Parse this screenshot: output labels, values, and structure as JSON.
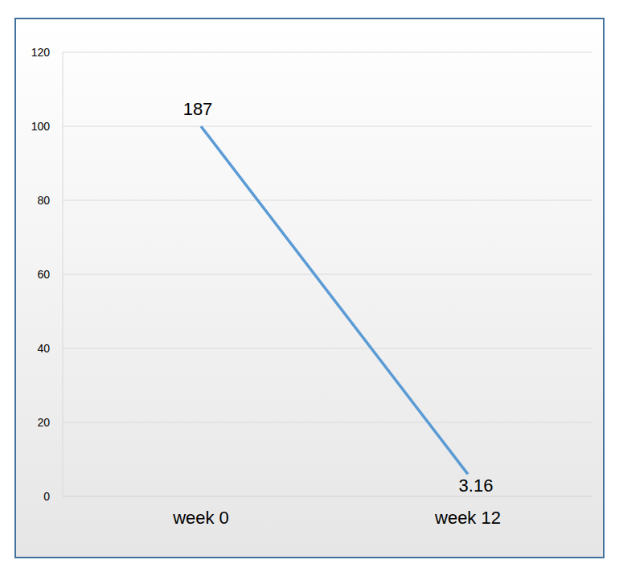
{
  "chart_data": {
    "type": "line",
    "categories": [
      "week 0",
      "week 12"
    ],
    "values": [
      100,
      6
    ],
    "annotations": [
      "187",
      "3.16"
    ],
    "color": "#5b9bd5",
    "marker": "none",
    "ylim": [
      0,
      120
    ],
    "yticks": [
      0,
      20,
      40,
      60,
      80,
      100,
      120
    ],
    "grid": true
  }
}
